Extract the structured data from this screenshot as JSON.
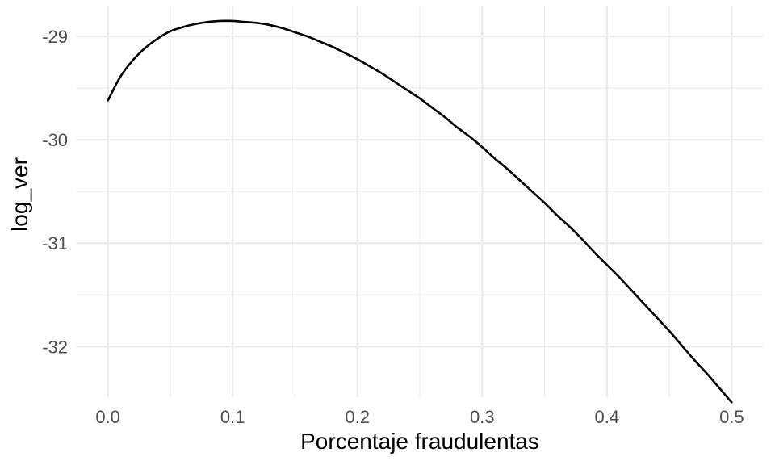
{
  "chart_data": {
    "type": "line",
    "xlabel": "Porcentaje fraudulentas",
    "ylabel": "log_ver",
    "xlim": [
      -0.025,
      0.525
    ],
    "ylim": [
      -32.49,
      -28.71
    ],
    "x_ticks": [
      0.0,
      0.1,
      0.2,
      0.3,
      0.4,
      0.5
    ],
    "x_tick_labels": [
      "0.0",
      "0.1",
      "0.2",
      "0.3",
      "0.4",
      "0.5"
    ],
    "y_ticks": [
      -29,
      -30,
      -31,
      -32
    ],
    "y_tick_labels": [
      "-29",
      "-30",
      "-31",
      "-32"
    ],
    "grid": true,
    "legend": "none",
    "line_color": "#000000",
    "series": [
      {
        "x": [
          0.0,
          0.01,
          0.02,
          0.03,
          0.04,
          0.05,
          0.06,
          0.07,
          0.08,
          0.09,
          0.1,
          0.11,
          0.12,
          0.13,
          0.14,
          0.15,
          0.16,
          0.17,
          0.18,
          0.19,
          0.2,
          0.21,
          0.22,
          0.23,
          0.24,
          0.25,
          0.26,
          0.27,
          0.28,
          0.29,
          0.3,
          0.31,
          0.32,
          0.33,
          0.34,
          0.35,
          0.36,
          0.37,
          0.38,
          0.39,
          0.4,
          0.41,
          0.42,
          0.43,
          0.44,
          0.45,
          0.46,
          0.47,
          0.48,
          0.49,
          0.5
        ],
        "values": [
          -29.62,
          -29.39,
          -29.23,
          -29.11,
          -29.02,
          -28.95,
          -28.91,
          -28.88,
          -28.86,
          -28.85,
          -28.85,
          -28.86,
          -28.87,
          -28.89,
          -28.92,
          -28.96,
          -29.0,
          -29.05,
          -29.1,
          -29.16,
          -29.22,
          -29.29,
          -29.36,
          -29.44,
          -29.52,
          -29.6,
          -29.69,
          -29.78,
          -29.88,
          -29.97,
          -30.07,
          -30.18,
          -30.28,
          -30.39,
          -30.5,
          -30.61,
          -30.73,
          -30.84,
          -30.96,
          -31.09,
          -31.21,
          -31.33,
          -31.46,
          -31.59,
          -31.72,
          -31.85,
          -31.99,
          -32.13,
          -32.26,
          -32.4,
          -32.54
        ]
      }
    ]
  }
}
